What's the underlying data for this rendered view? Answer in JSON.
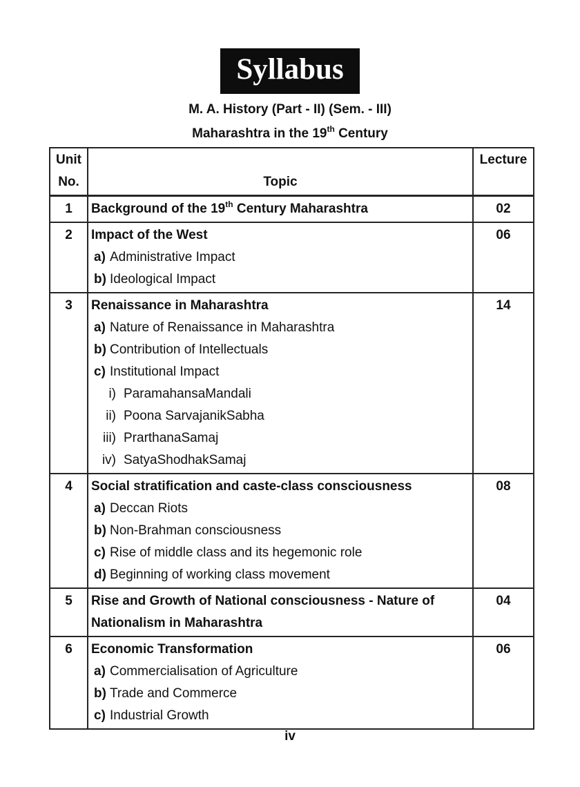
{
  "page": {
    "banner_label": "Syllabus",
    "banner_bg": "#0d0d0d",
    "banner_fg": "#ffffff",
    "subtitle_line1": "M. A. History (Part - II) (Sem. - III)",
    "subtitle_line2_prefix": "Maharashtra in the 19",
    "subtitle_line2_sup": "th",
    "subtitle_line2_suffix": " Century",
    "page_number": "iv"
  },
  "table": {
    "header": {
      "unit_line1": "Unit",
      "unit_line2": "No.",
      "topic": "Topic",
      "lecture": "Lecture"
    },
    "rows": [
      {
        "unit": "1",
        "lecture": "02",
        "title_prefix": "Background of the 19",
        "title_sup": "th",
        "title_suffix": " Century Maharashtra"
      },
      {
        "unit": "2",
        "lecture": "06",
        "title": "Impact of the West",
        "subitems": [
          {
            "label": "a)",
            "text": "Administrative Impact"
          },
          {
            "label": "b)",
            "text": "Ideological Impact"
          }
        ]
      },
      {
        "unit": "3",
        "lecture": "14",
        "title": "Renaissance in Maharashtra",
        "subitems": [
          {
            "label": "a)",
            "text": "Nature of Renaissance in Maharashtra"
          },
          {
            "label": "b)",
            "text": "Contribution of Intellectuals"
          },
          {
            "label": "c)",
            "text": "Institutional Impact"
          }
        ],
        "romanitems": [
          {
            "label": "i)",
            "text": "ParamahansaMandali"
          },
          {
            "label": "ii)",
            "text": "Poona SarvajanikSabha"
          },
          {
            "label": "iii)",
            "text": "PrarthanaSamaj"
          },
          {
            "label": "iv)",
            "text": "SatyaShodhakSamaj"
          }
        ]
      },
      {
        "unit": "4",
        "lecture": "08",
        "title": "Social stratification and caste-class consciousness",
        "subitems": [
          {
            "label": "a)",
            "text": "Deccan Riots"
          },
          {
            "label": "b)",
            "text": "Non-Brahman consciousness"
          },
          {
            "label": "c)",
            "text": "Rise of middle class and its hegemonic role"
          },
          {
            "label": "d)",
            "text": "Beginning of working class movement"
          }
        ]
      },
      {
        "unit": "5",
        "lecture": "04",
        "title_line1": "Rise and Growth of National consciousness - Nature of",
        "title_line2": "Nationalism in Maharashtra"
      },
      {
        "unit": "6",
        "lecture": "06",
        "title": "Economic Transformation",
        "subitems": [
          {
            "label": "a)",
            "text": "Commercialisation of Agriculture"
          },
          {
            "label": "b)",
            "text": "Trade and Commerce"
          },
          {
            "label": "c)",
            "text": "Industrial Growth"
          }
        ]
      }
    ]
  }
}
